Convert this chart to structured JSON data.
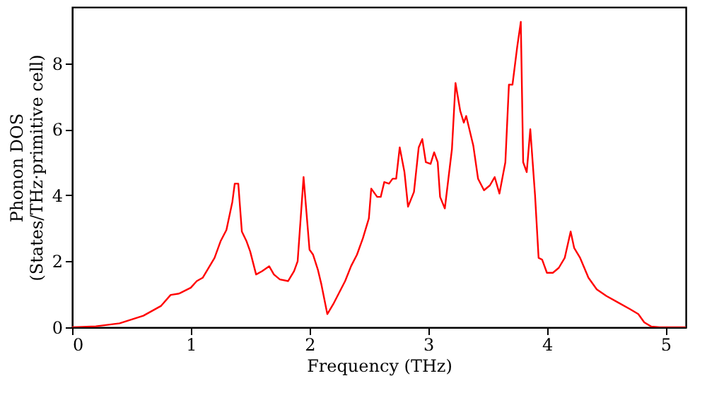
{
  "chart_data": {
    "type": "line",
    "xlabel": "Frequency (THz)",
    "ylabel": "Phonon DOS\n(States/THz·primitive cell)",
    "x": [
      0,
      0.2,
      0.4,
      0.6,
      0.75,
      0.83,
      0.9,
      1.0,
      1.05,
      1.1,
      1.2,
      1.25,
      1.3,
      1.35,
      1.37,
      1.4,
      1.43,
      1.47,
      1.5,
      1.55,
      1.6,
      1.66,
      1.7,
      1.75,
      1.82,
      1.87,
      1.9,
      1.95,
      2.0,
      2.03,
      2.07,
      2.1,
      2.15,
      2.2,
      2.3,
      2.35,
      2.4,
      2.45,
      2.5,
      2.52,
      2.57,
      2.6,
      2.63,
      2.67,
      2.7,
      2.73,
      2.76,
      2.8,
      2.83,
      2.88,
      2.92,
      2.95,
      2.98,
      3.02,
      3.05,
      3.08,
      3.1,
      3.14,
      3.2,
      3.23,
      3.27,
      3.3,
      3.32,
      3.38,
      3.42,
      3.47,
      3.52,
      3.56,
      3.6,
      3.65,
      3.68,
      3.71,
      3.75,
      3.78,
      3.8,
      3.83,
      3.86,
      3.9,
      3.93,
      3.96,
      4.0,
      4.05,
      4.1,
      4.15,
      4.2,
      4.23,
      4.28,
      4.35,
      4.42,
      4.5,
      4.6,
      4.7,
      4.77,
      4.82,
      4.88,
      4.95,
      5.17
    ],
    "series": [
      {
        "color": "#ff0000",
        "values": [
          0,
          0.03,
          0.12,
          0.35,
          0.65,
          0.98,
          1.02,
          1.2,
          1.4,
          1.5,
          2.1,
          2.6,
          2.95,
          3.8,
          4.35,
          4.35,
          2.9,
          2.6,
          2.3,
          1.6,
          1.7,
          1.85,
          1.6,
          1.45,
          1.4,
          1.7,
          2.0,
          4.55,
          2.35,
          2.2,
          1.75,
          1.3,
          0.4,
          0.7,
          1.4,
          1.85,
          2.2,
          2.7,
          3.3,
          4.2,
          3.95,
          3.95,
          4.4,
          4.35,
          4.5,
          4.5,
          5.45,
          4.7,
          3.65,
          4.1,
          5.45,
          5.7,
          5.0,
          4.95,
          5.3,
          5.0,
          3.95,
          3.6,
          5.4,
          7.4,
          6.55,
          6.2,
          6.4,
          5.5,
          4.5,
          4.15,
          4.3,
          4.55,
          4.05,
          5.0,
          7.35,
          7.35,
          8.5,
          9.25,
          5.0,
          4.7,
          6.0,
          4.0,
          2.1,
          2.05,
          1.65,
          1.65,
          1.8,
          2.1,
          2.9,
          2.4,
          2.1,
          1.5,
          1.15,
          0.95,
          0.75,
          0.55,
          0.4,
          0.15,
          0.02,
          0,
          0
        ]
      }
    ],
    "xlim": [
      0,
      5.17
    ],
    "ylim": [
      0,
      9.7
    ],
    "xticks": [
      0,
      1,
      2,
      3,
      4,
      5
    ],
    "yticks": [
      0,
      2,
      4,
      6,
      8
    ],
    "grid": false,
    "marker": "none",
    "line_style": "solid"
  }
}
